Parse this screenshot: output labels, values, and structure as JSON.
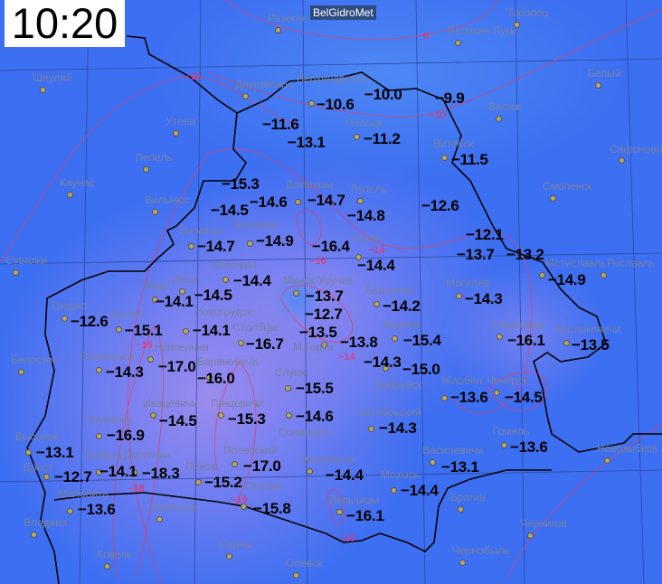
{
  "header": {
    "time": "10:20",
    "brand": "BelGidroMet"
  },
  "colors": {
    "background": "#3d6ff2",
    "cold_zone": "#9a86ee",
    "isotherm": "#e0406a",
    "border": "#000000"
  },
  "temperatures": [
    "−11.6",
    "−13.1",
    "−10.6",
    "−10.0",
    "−9.9",
    "−11.2",
    "−11.5",
    "−15.3",
    "−14.6",
    "−14.5",
    "−14.7",
    "−14.8",
    "−12.6",
    "−12.1",
    "−13.7",
    "−13.2",
    "−14.9",
    "−16.4",
    "−14.4",
    "−14.7",
    "−14.4",
    "−14.5",
    "−14.1",
    "−14.9",
    "−14.3",
    "−13.7",
    "−12.7",
    "−13.5",
    "−14.2",
    "−12.6",
    "−15.1",
    "−14.1",
    "−16.7",
    "−13.8",
    "−15.4",
    "−16.1",
    "−13.5",
    "−14.3",
    "−15.0",
    "−17.0",
    "−14.3",
    "−16.0",
    "−15.5",
    "−14.6",
    "−13.6",
    "−14.5",
    "−14.5",
    "−15.3",
    "−16.9",
    "−14.3",
    "−13.6",
    "−13.1",
    "−17.0",
    "−13.1",
    "−14.1",
    "−18.3",
    "−12.7",
    "−14.4",
    "−15.2",
    "−14.4",
    "−13.6",
    "−15.8",
    "−16.1"
  ],
  "cities": [
    "Резекне",
    "Великие Луки",
    "Торопец",
    "Даугавпилс",
    "Шяуляй",
    "Утена",
    "Белый",
    "Велиж",
    "Витебск",
    "Сафоново",
    "Смоленск",
    "Каунас",
    "Полоцк",
    "Верхнедвинск",
    "Докшицы",
    "Лепель",
    "Вильнюс",
    "Вилейка",
    "Ошмяны",
    "Сувалки",
    "Воложин",
    "Лида",
    "Ивье",
    "Минск-Уручье",
    "Березино",
    "Могилев",
    "Мстиславль",
    "Рославль",
    "Гродно",
    "Щучин",
    "Новогрудок",
    "Столбцы",
    "Кличев",
    "Славгород",
    "Костюковичи",
    "М.Горка",
    "Новоельня",
    "Волковыск",
    "Белосток",
    "Барановичи",
    "Бобруйск",
    "Жлобин",
    "Чечерск",
    "Слуцк",
    "Ивацевичи",
    "Ганцевичи",
    "Солигорск",
    "Пружаны",
    "Октябрьский",
    "Гомель",
    "Полесский",
    "Житковичи",
    "Высокое",
    "Кобрин",
    "Дрогичин",
    "Пинск",
    "Брест",
    "Василевичи",
    "Мозырь",
    "Малорита",
    "Столин",
    "Брагин",
    "Лельчицы",
    "Любешов",
    "Новозыбков",
    "Влодава",
    "Чернигов",
    "Сарны",
    "Ковель",
    "Олевск",
    "Чернобыль",
    "Орша",
    "Лепель"
  ],
  "isotherm_labels": [
    "−8",
    "−10",
    "−12",
    "−16",
    "−14",
    "−14",
    "−16",
    "−18",
    "−16",
    "−16"
  ]
}
